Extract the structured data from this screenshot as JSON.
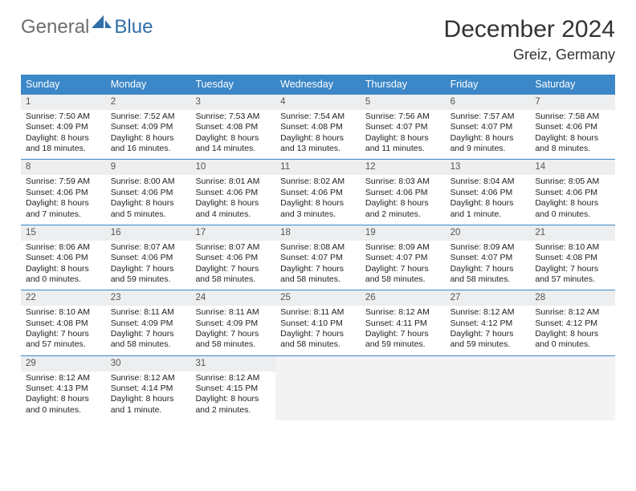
{
  "logo": {
    "part1": "General",
    "part2": "Blue"
  },
  "title": "December 2024",
  "location": "Greiz, Germany",
  "colors": {
    "header_bg": "#3b87c8",
    "header_text": "#ffffff",
    "daynum_bg": "#eceeef",
    "border": "#3b87c8",
    "logo_gray": "#6e6e6e",
    "logo_blue": "#2f6fa8"
  },
  "dow": [
    "Sunday",
    "Monday",
    "Tuesday",
    "Wednesday",
    "Thursday",
    "Friday",
    "Saturday"
  ],
  "weeks": [
    [
      {
        "n": "1",
        "sr": "Sunrise: 7:50 AM",
        "ss": "Sunset: 4:09 PM",
        "d1": "Daylight: 8 hours",
        "d2": "and 18 minutes."
      },
      {
        "n": "2",
        "sr": "Sunrise: 7:52 AM",
        "ss": "Sunset: 4:09 PM",
        "d1": "Daylight: 8 hours",
        "d2": "and 16 minutes."
      },
      {
        "n": "3",
        "sr": "Sunrise: 7:53 AM",
        "ss": "Sunset: 4:08 PM",
        "d1": "Daylight: 8 hours",
        "d2": "and 14 minutes."
      },
      {
        "n": "4",
        "sr": "Sunrise: 7:54 AM",
        "ss": "Sunset: 4:08 PM",
        "d1": "Daylight: 8 hours",
        "d2": "and 13 minutes."
      },
      {
        "n": "5",
        "sr": "Sunrise: 7:56 AM",
        "ss": "Sunset: 4:07 PM",
        "d1": "Daylight: 8 hours",
        "d2": "and 11 minutes."
      },
      {
        "n": "6",
        "sr": "Sunrise: 7:57 AM",
        "ss": "Sunset: 4:07 PM",
        "d1": "Daylight: 8 hours",
        "d2": "and 9 minutes."
      },
      {
        "n": "7",
        "sr": "Sunrise: 7:58 AM",
        "ss": "Sunset: 4:06 PM",
        "d1": "Daylight: 8 hours",
        "d2": "and 8 minutes."
      }
    ],
    [
      {
        "n": "8",
        "sr": "Sunrise: 7:59 AM",
        "ss": "Sunset: 4:06 PM",
        "d1": "Daylight: 8 hours",
        "d2": "and 7 minutes."
      },
      {
        "n": "9",
        "sr": "Sunrise: 8:00 AM",
        "ss": "Sunset: 4:06 PM",
        "d1": "Daylight: 8 hours",
        "d2": "and 5 minutes."
      },
      {
        "n": "10",
        "sr": "Sunrise: 8:01 AM",
        "ss": "Sunset: 4:06 PM",
        "d1": "Daylight: 8 hours",
        "d2": "and 4 minutes."
      },
      {
        "n": "11",
        "sr": "Sunrise: 8:02 AM",
        "ss": "Sunset: 4:06 PM",
        "d1": "Daylight: 8 hours",
        "d2": "and 3 minutes."
      },
      {
        "n": "12",
        "sr": "Sunrise: 8:03 AM",
        "ss": "Sunset: 4:06 PM",
        "d1": "Daylight: 8 hours",
        "d2": "and 2 minutes."
      },
      {
        "n": "13",
        "sr": "Sunrise: 8:04 AM",
        "ss": "Sunset: 4:06 PM",
        "d1": "Daylight: 8 hours",
        "d2": "and 1 minute."
      },
      {
        "n": "14",
        "sr": "Sunrise: 8:05 AM",
        "ss": "Sunset: 4:06 PM",
        "d1": "Daylight: 8 hours",
        "d2": "and 0 minutes."
      }
    ],
    [
      {
        "n": "15",
        "sr": "Sunrise: 8:06 AM",
        "ss": "Sunset: 4:06 PM",
        "d1": "Daylight: 8 hours",
        "d2": "and 0 minutes."
      },
      {
        "n": "16",
        "sr": "Sunrise: 8:07 AM",
        "ss": "Sunset: 4:06 PM",
        "d1": "Daylight: 7 hours",
        "d2": "and 59 minutes."
      },
      {
        "n": "17",
        "sr": "Sunrise: 8:07 AM",
        "ss": "Sunset: 4:06 PM",
        "d1": "Daylight: 7 hours",
        "d2": "and 58 minutes."
      },
      {
        "n": "18",
        "sr": "Sunrise: 8:08 AM",
        "ss": "Sunset: 4:07 PM",
        "d1": "Daylight: 7 hours",
        "d2": "and 58 minutes."
      },
      {
        "n": "19",
        "sr": "Sunrise: 8:09 AM",
        "ss": "Sunset: 4:07 PM",
        "d1": "Daylight: 7 hours",
        "d2": "and 58 minutes."
      },
      {
        "n": "20",
        "sr": "Sunrise: 8:09 AM",
        "ss": "Sunset: 4:07 PM",
        "d1": "Daylight: 7 hours",
        "d2": "and 58 minutes."
      },
      {
        "n": "21",
        "sr": "Sunrise: 8:10 AM",
        "ss": "Sunset: 4:08 PM",
        "d1": "Daylight: 7 hours",
        "d2": "and 57 minutes."
      }
    ],
    [
      {
        "n": "22",
        "sr": "Sunrise: 8:10 AM",
        "ss": "Sunset: 4:08 PM",
        "d1": "Daylight: 7 hours",
        "d2": "and 57 minutes."
      },
      {
        "n": "23",
        "sr": "Sunrise: 8:11 AM",
        "ss": "Sunset: 4:09 PM",
        "d1": "Daylight: 7 hours",
        "d2": "and 58 minutes."
      },
      {
        "n": "24",
        "sr": "Sunrise: 8:11 AM",
        "ss": "Sunset: 4:09 PM",
        "d1": "Daylight: 7 hours",
        "d2": "and 58 minutes."
      },
      {
        "n": "25",
        "sr": "Sunrise: 8:11 AM",
        "ss": "Sunset: 4:10 PM",
        "d1": "Daylight: 7 hours",
        "d2": "and 58 minutes."
      },
      {
        "n": "26",
        "sr": "Sunrise: 8:12 AM",
        "ss": "Sunset: 4:11 PM",
        "d1": "Daylight: 7 hours",
        "d2": "and 59 minutes."
      },
      {
        "n": "27",
        "sr": "Sunrise: 8:12 AM",
        "ss": "Sunset: 4:12 PM",
        "d1": "Daylight: 7 hours",
        "d2": "and 59 minutes."
      },
      {
        "n": "28",
        "sr": "Sunrise: 8:12 AM",
        "ss": "Sunset: 4:12 PM",
        "d1": "Daylight: 8 hours",
        "d2": "and 0 minutes."
      }
    ],
    [
      {
        "n": "29",
        "sr": "Sunrise: 8:12 AM",
        "ss": "Sunset: 4:13 PM",
        "d1": "Daylight: 8 hours",
        "d2": "and 0 minutes."
      },
      {
        "n": "30",
        "sr": "Sunrise: 8:12 AM",
        "ss": "Sunset: 4:14 PM",
        "d1": "Daylight: 8 hours",
        "d2": "and 1 minute."
      },
      {
        "n": "31",
        "sr": "Sunrise: 8:12 AM",
        "ss": "Sunset: 4:15 PM",
        "d1": "Daylight: 8 hours",
        "d2": "and 2 minutes."
      },
      {
        "empty": true
      },
      {
        "empty": true
      },
      {
        "empty": true
      },
      {
        "empty": true
      }
    ]
  ]
}
